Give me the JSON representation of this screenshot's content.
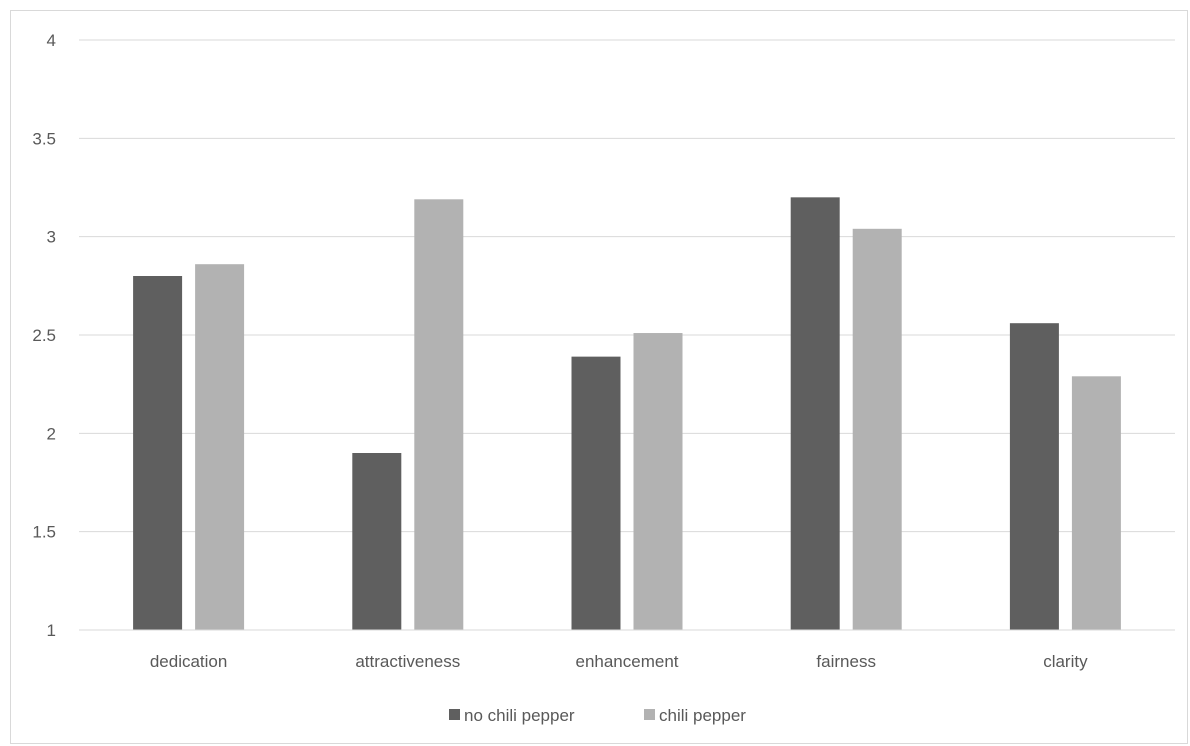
{
  "chart_data": {
    "type": "bar",
    "title": "",
    "xlabel": "",
    "ylabel": "",
    "categories": [
      "dedication",
      "attractiveness",
      "enhancement",
      "fairness",
      "clarity"
    ],
    "series": [
      {
        "name": "no chili pepper",
        "color": "#5f5f5f",
        "values": [
          2.8,
          1.9,
          2.39,
          3.2,
          2.56
        ]
      },
      {
        "name": "chili pepper",
        "color": "#b2b2b2",
        "values": [
          2.86,
          3.19,
          2.51,
          3.04,
          2.29
        ]
      }
    ],
    "ylim": [
      1,
      4
    ],
    "yticks": [
      "1",
      "1.5",
      "2",
      "2.5",
      "3",
      "3.5",
      "4"
    ],
    "grid": true,
    "legend_position": "bottom"
  }
}
